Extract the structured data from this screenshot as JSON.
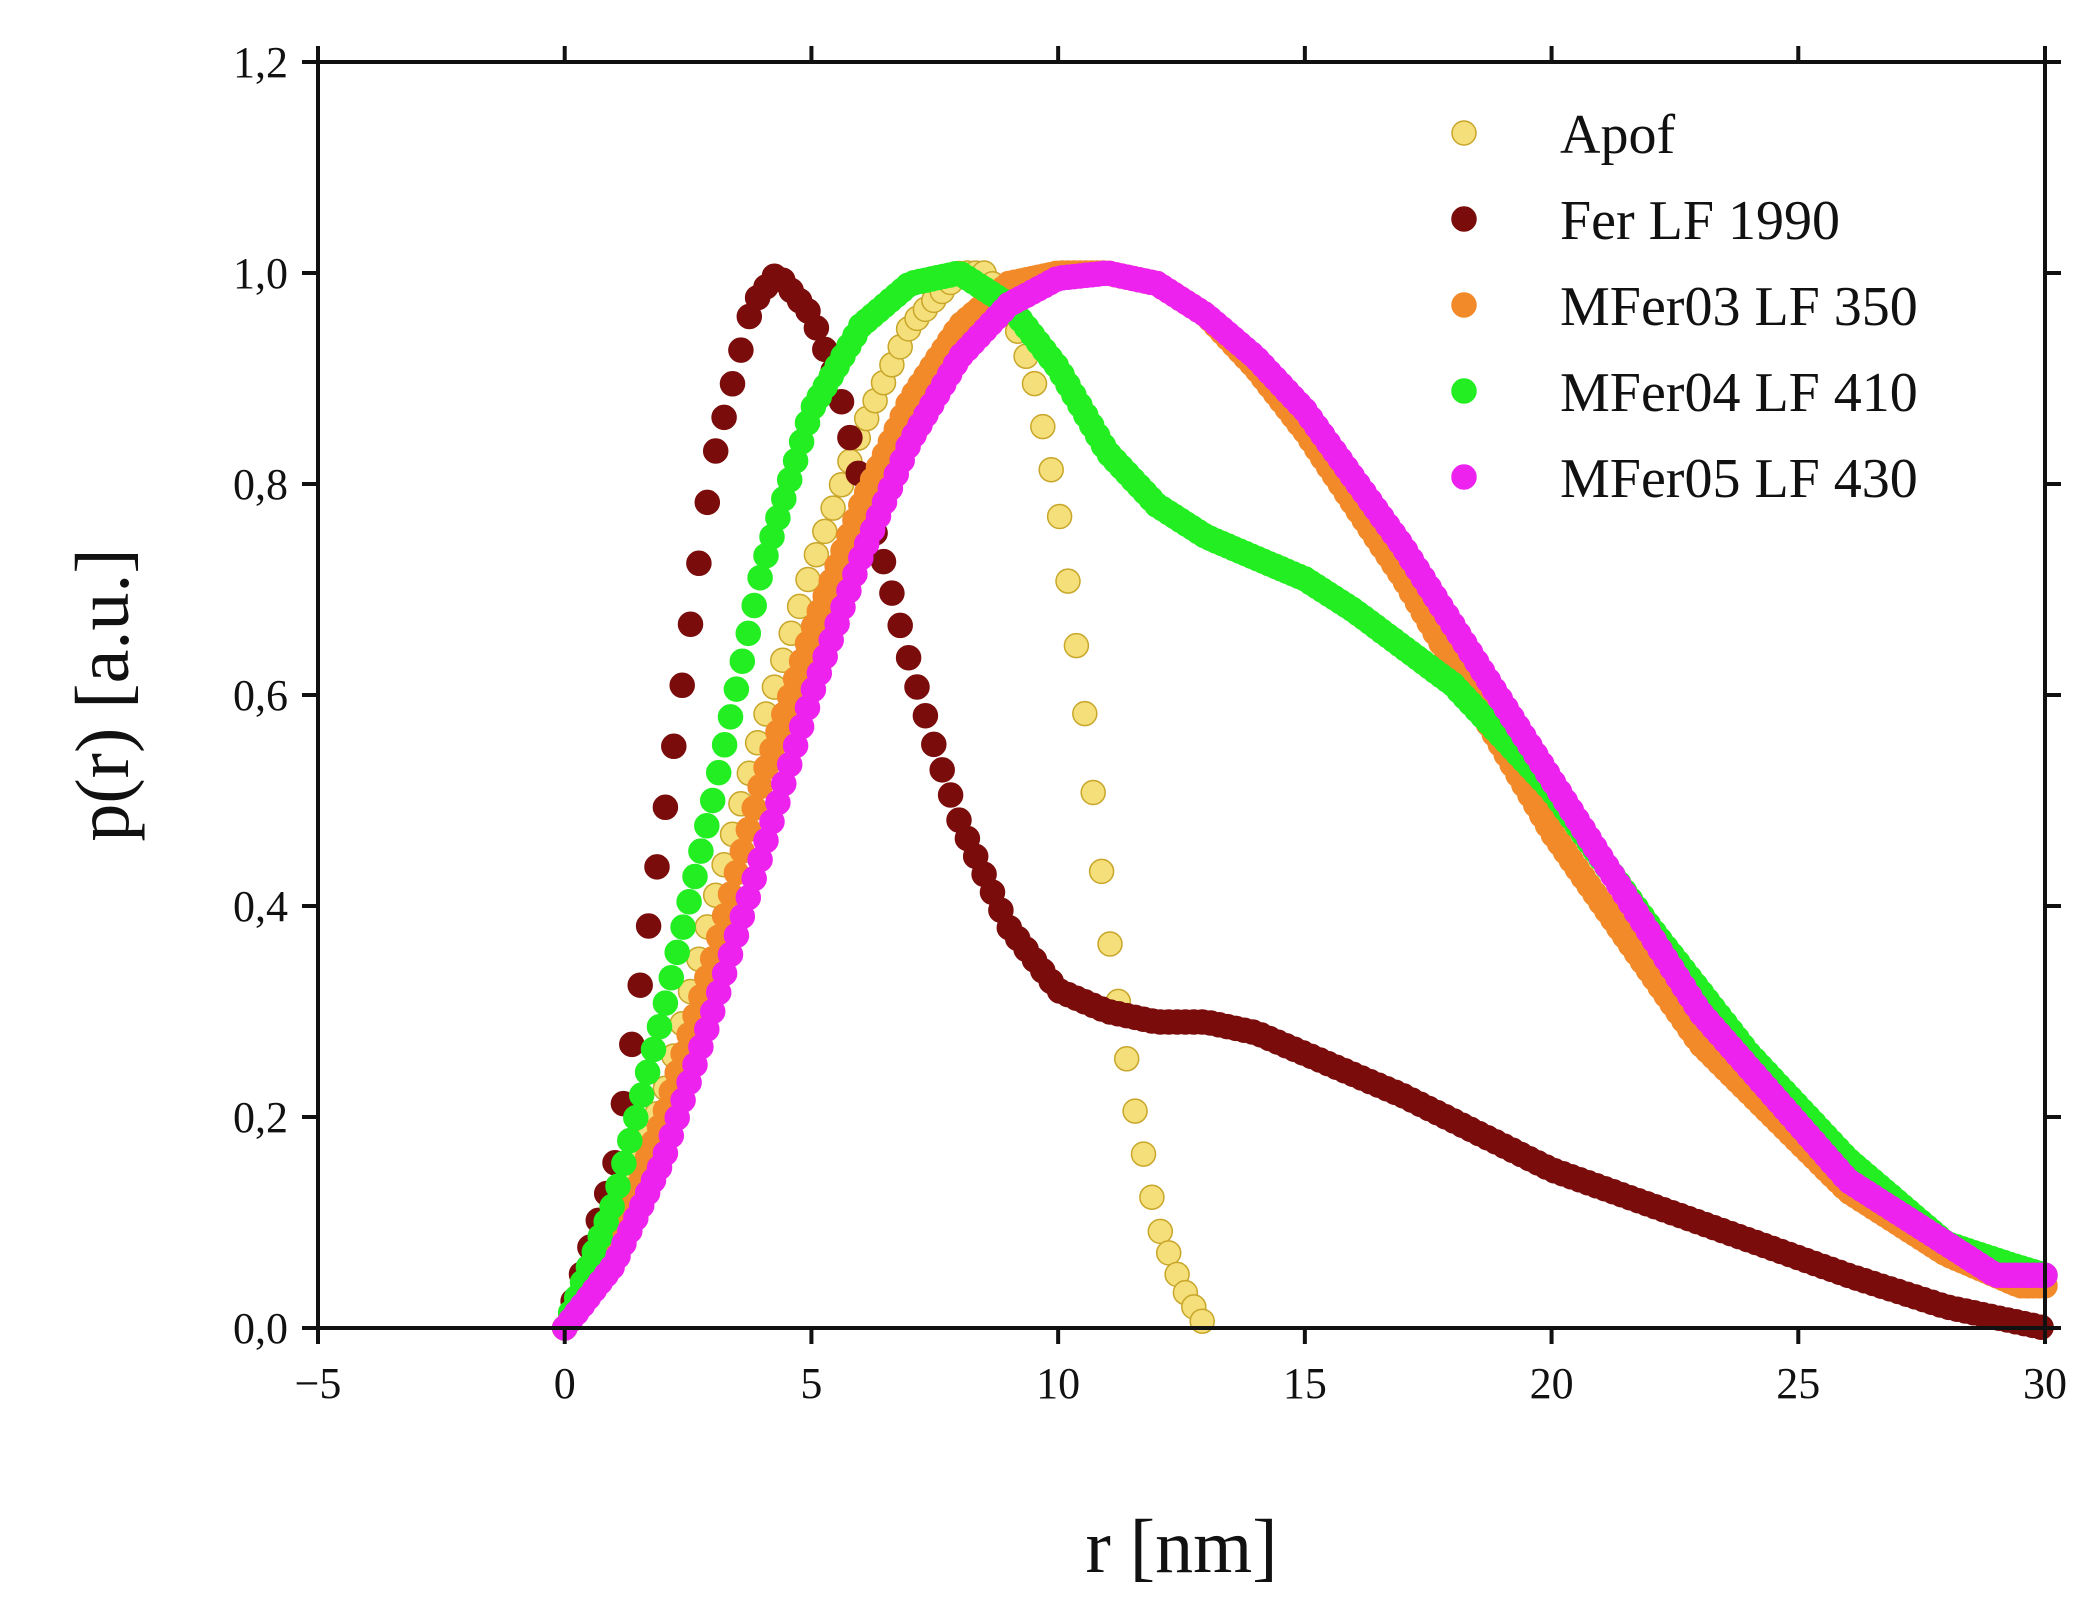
{
  "chart_data": {
    "type": "scatter",
    "title": "",
    "xlabel": "r [nm]",
    "ylabel": "p(r) [a.u.]",
    "xlim": [
      -5,
      30
    ],
    "ylim": [
      0,
      1.2
    ],
    "xticks": [
      -5,
      0,
      5,
      10,
      15,
      20,
      25,
      30
    ],
    "yticks": [
      0.0,
      0.2,
      0.4,
      0.6,
      0.8,
      1.0,
      1.2
    ],
    "xtick_labels": [
      "−5",
      "0",
      "5",
      "10",
      "15",
      "20",
      "25",
      "30"
    ],
    "ytick_labels": [
      "0,0",
      "0,2",
      "0,4",
      "0,6",
      "0,8",
      "1,0",
      "1,2"
    ],
    "grid": false,
    "legend_position": "top-right",
    "series": [
      {
        "name": "Apof",
        "color": "#f5df7a",
        "edge": "#c8a62a",
        "step": 0.17,
        "points": [
          [
            0,
            0
          ],
          [
            1,
            0.09
          ],
          [
            2,
            0.22
          ],
          [
            3,
            0.4
          ],
          [
            4,
            0.57
          ],
          [
            5,
            0.72
          ],
          [
            6,
            0.85
          ],
          [
            7,
            0.95
          ],
          [
            8,
            1.0
          ],
          [
            8.5,
            1.0
          ],
          [
            9,
            0.97
          ],
          [
            9.5,
            0.9
          ],
          [
            10,
            0.78
          ],
          [
            10.5,
            0.6
          ],
          [
            11,
            0.38
          ],
          [
            11.5,
            0.22
          ],
          [
            12,
            0.1
          ],
          [
            12.5,
            0.04
          ],
          [
            13,
            0.0
          ]
        ]
      },
      {
        "name": "Fer LF 1990",
        "color": "#7a0c0c",
        "edge": "#7a0c0c",
        "step": 0.17,
        "points": [
          [
            0,
            0
          ],
          [
            1,
            0.15
          ],
          [
            2,
            0.48
          ],
          [
            3,
            0.82
          ],
          [
            3.8,
            0.97
          ],
          [
            4.3,
            1.0
          ],
          [
            5,
            0.96
          ],
          [
            5.5,
            0.9
          ],
          [
            6,
            0.8
          ],
          [
            6.5,
            0.72
          ],
          [
            7,
            0.63
          ],
          [
            7.5,
            0.55
          ],
          [
            8,
            0.48
          ],
          [
            9,
            0.38
          ],
          [
            10,
            0.32
          ],
          [
            11,
            0.3
          ],
          [
            12,
            0.29
          ],
          [
            13,
            0.29
          ],
          [
            14,
            0.28
          ],
          [
            15,
            0.26
          ],
          [
            17,
            0.22
          ],
          [
            20,
            0.15
          ],
          [
            23,
            0.1
          ],
          [
            26,
            0.05
          ],
          [
            28,
            0.02
          ],
          [
            30,
            0.0
          ]
        ]
      },
      {
        "name": "MFer03 LF 350",
        "color": "#f28a2a",
        "edge": "#f28a2a",
        "step": 0.12,
        "points": [
          [
            0,
            0
          ],
          [
            1,
            0.08
          ],
          [
            2,
            0.2
          ],
          [
            3,
            0.35
          ],
          [
            4,
            0.52
          ],
          [
            5,
            0.66
          ],
          [
            6,
            0.78
          ],
          [
            7,
            0.88
          ],
          [
            8,
            0.95
          ],
          [
            9,
            0.99
          ],
          [
            10,
            1.0
          ],
          [
            11,
            1.0
          ],
          [
            12,
            0.99
          ],
          [
            13,
            0.96
          ],
          [
            14,
            0.91
          ],
          [
            15,
            0.85
          ],
          [
            17,
            0.71
          ],
          [
            20,
            0.47
          ],
          [
            23,
            0.27
          ],
          [
            26,
            0.13
          ],
          [
            28,
            0.07
          ],
          [
            29.5,
            0.04
          ],
          [
            30,
            0.04
          ]
        ]
      },
      {
        "name": "MFer04 LF 410",
        "color": "#22ee22",
        "edge": "#22ee22",
        "step": 0.12,
        "points": [
          [
            0,
            0
          ],
          [
            1,
            0.12
          ],
          [
            2,
            0.3
          ],
          [
            3,
            0.5
          ],
          [
            4,
            0.72
          ],
          [
            5,
            0.87
          ],
          [
            6,
            0.95
          ],
          [
            7,
            0.99
          ],
          [
            8,
            1.0
          ],
          [
            9,
            0.97
          ],
          [
            10,
            0.91
          ],
          [
            11,
            0.83
          ],
          [
            12,
            0.78
          ],
          [
            13,
            0.75
          ],
          [
            14,
            0.73
          ],
          [
            15,
            0.71
          ],
          [
            16,
            0.68
          ],
          [
            18,
            0.61
          ],
          [
            20,
            0.51
          ],
          [
            22,
            0.38
          ],
          [
            24,
            0.26
          ],
          [
            26,
            0.16
          ],
          [
            28,
            0.08
          ],
          [
            29.3,
            0.06
          ],
          [
            30,
            0.05
          ]
        ]
      },
      {
        "name": "MFer05 LF 430",
        "color": "#ee22ee",
        "edge": "#ee22ee",
        "step": 0.12,
        "points": [
          [
            0,
            0
          ],
          [
            1,
            0.06
          ],
          [
            2,
            0.16
          ],
          [
            3,
            0.3
          ],
          [
            4,
            0.45
          ],
          [
            5,
            0.6
          ],
          [
            6,
            0.73
          ],
          [
            7,
            0.84
          ],
          [
            8,
            0.92
          ],
          [
            9,
            0.97
          ],
          [
            10,
            0.995
          ],
          [
            11,
            1.0
          ],
          [
            12,
            0.99
          ],
          [
            13,
            0.96
          ],
          [
            14,
            0.92
          ],
          [
            15,
            0.87
          ],
          [
            17,
            0.74
          ],
          [
            20,
            0.52
          ],
          [
            23,
            0.3
          ],
          [
            26,
            0.14
          ],
          [
            28,
            0.08
          ],
          [
            29,
            0.05
          ],
          [
            29.5,
            0.05
          ],
          [
            30,
            0.05
          ]
        ]
      }
    ]
  }
}
